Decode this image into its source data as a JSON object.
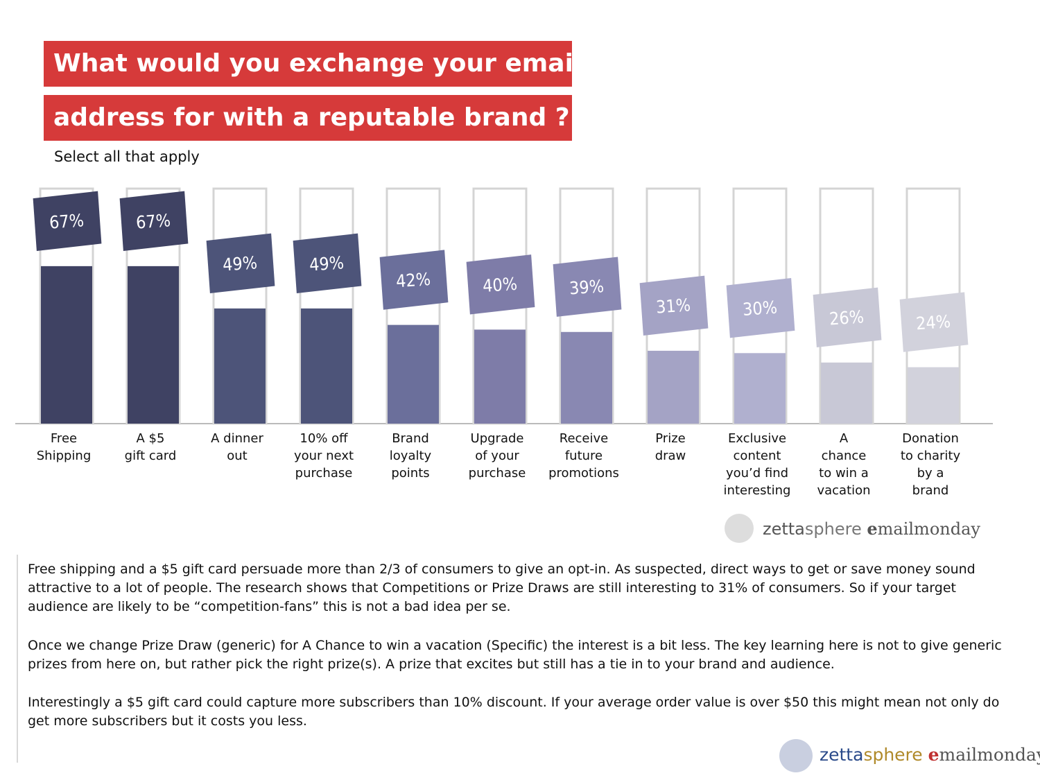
{
  "chart_data": {
    "type": "bar",
    "title": [
      "What would you exchange your email",
      "address for with a reputable brand ?"
    ],
    "subtitle": "Select all that apply",
    "categories": [
      "Free\nShipping",
      "A $5\ngift card",
      "A dinner\nout",
      "10% off\nyour next\npurchase",
      "Brand\nloyalty\npoints",
      "Upgrade\nof your\npurchase",
      "Receive\nfuture\npromotions",
      "Prize\ndraw",
      "Exclusive\ncontent\nyou’d find\ninteresting",
      "A\nchance\nto win a\nvacation",
      "Donation\nto charity\nby a\nbrand"
    ],
    "values": [
      67,
      67,
      49,
      49,
      42,
      40,
      39,
      31,
      30,
      26,
      24
    ],
    "value_labels": [
      "67%",
      "67%",
      "49%",
      "49%",
      "42%",
      "40%",
      "39%",
      "31%",
      "30%",
      "26%",
      "24%"
    ],
    "colors": [
      "#3f4263",
      "#3f4263",
      "#4d5479",
      "#4d5479",
      "#6b6f9b",
      "#7e7ca8",
      "#8988b2",
      "#a4a3c5",
      "#b0b0cf",
      "#c8c8d6",
      "#d2d2dc"
    ],
    "ylim": [
      0,
      100
    ],
    "logos": [
      [
        "zetta",
        "sphere",
        "e",
        "mailmonday"
      ],
      [
        "zetta",
        "sphere",
        "e",
        "mailmonday"
      ]
    ],
    "paragraphs": [
      "Free shipping and a $5 gift card persuade more than 2/3 of consumers to give an opt-in. As suspected, direct ways to get or save money sound attractive to a lot of people. The research shows that Competitions or Prize Draws are still interesting to 31% of consumers. So if your target audience are likely to be “competition-fans” this is not a bad idea per se.",
      "Once we change Prize Draw (generic) for A Chance to win a vacation (Specific) the interest is a bit less. The key learning here is not to give generic prizes from here on, but rather pick the right prize(s). A prize that excites but still has a tie in to your brand and audience.",
      "Interestingly a $5 gift card could capture more subscribers than 10% discount. If your average order value is over $50 this might mean not only do get more subscribers but it costs you less."
    ]
  }
}
